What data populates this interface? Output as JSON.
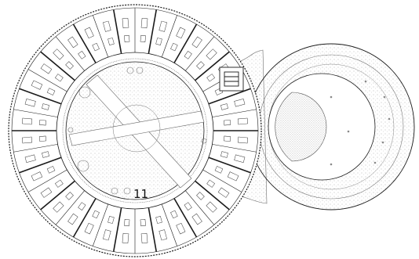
{
  "drawing": {
    "label": "11",
    "line_color": "#1a1a1a",
    "hatch_color": "#9a9a9a",
    "background": "#ffffff"
  },
  "elements": {
    "circular_building": "circular-building-outline",
    "annex": "annex-pool-outline",
    "courtyard": "central-courtyard",
    "paths": "crossing-paths",
    "stair": "stair-core"
  }
}
